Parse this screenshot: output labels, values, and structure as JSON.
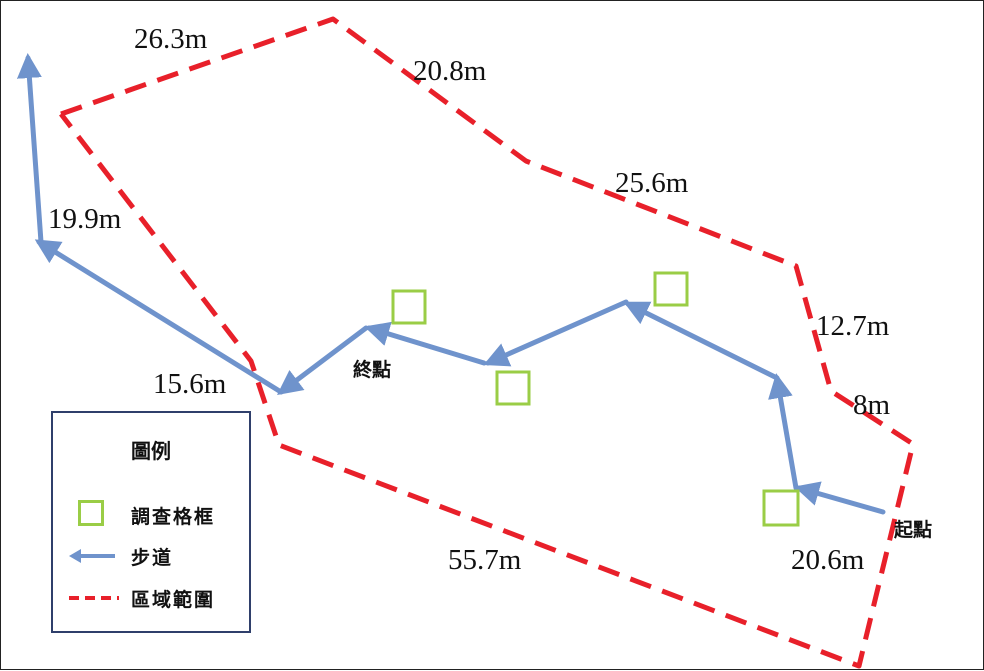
{
  "distances": [
    "26.3m",
    "20.8m",
    "25.6m",
    "12.7m",
    "8m",
    "55.7m",
    "20.6m",
    "19.9m",
    "15.6m"
  ],
  "places": {
    "end": "終點",
    "start": "起點"
  },
  "legend": {
    "title": "圖例",
    "items": [
      {
        "label": "調查格框",
        "symbol": "survey-plot"
      },
      {
        "label": "步道",
        "symbol": "trail"
      },
      {
        "label": "區域範圍",
        "symbol": "area-boundary"
      }
    ]
  },
  "colors": {
    "boundary": "#e8202a",
    "trail": "#6f93cc",
    "plot": "#9acd46",
    "legend_border": "#2f3f6b"
  }
}
